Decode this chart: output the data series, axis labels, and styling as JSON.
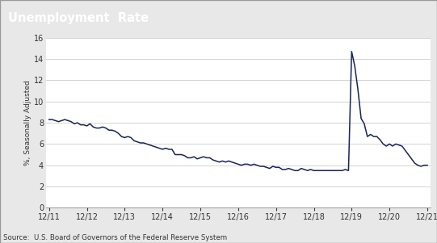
{
  "title": "Unemployment  Rate",
  "ylabel": "%, Seasonally Adjusted",
  "source": "Source:  U.S. Board of Governors of the Federal Reserve System",
  "line_color": "#1a2358",
  "background_color": "#e8e8e8",
  "plot_bg_color": "#ffffff",
  "title_bg_color": "#666666",
  "title_text_color": "#ffffff",
  "border_color": "#aaaaaa",
  "ylim": [
    0,
    16
  ],
  "yticks": [
    0,
    2,
    4,
    6,
    8,
    10,
    12,
    14,
    16
  ],
  "x_labels": [
    "12/11",
    "12/12",
    "12/13",
    "12/14",
    "12/15",
    "12/16",
    "12/17",
    "12/18",
    "12/19",
    "12/20",
    "12/21"
  ],
  "data": [
    8.3,
    8.3,
    8.2,
    8.1,
    8.2,
    8.3,
    8.2,
    8.1,
    7.9,
    8.0,
    7.8,
    7.8,
    7.7,
    7.9,
    7.6,
    7.5,
    7.5,
    7.6,
    7.5,
    7.3,
    7.3,
    7.2,
    7.0,
    6.7,
    6.6,
    6.7,
    6.6,
    6.3,
    6.2,
    6.1,
    6.1,
    6.0,
    5.9,
    5.8,
    5.7,
    5.6,
    5.5,
    5.6,
    5.5,
    5.5,
    5.0,
    5.0,
    5.0,
    4.9,
    4.7,
    4.7,
    4.8,
    4.6,
    4.7,
    4.8,
    4.7,
    4.7,
    4.5,
    4.4,
    4.3,
    4.4,
    4.3,
    4.4,
    4.3,
    4.2,
    4.1,
    4.0,
    4.1,
    4.1,
    4.0,
    4.1,
    4.0,
    3.9,
    3.9,
    3.8,
    3.7,
    3.9,
    3.8,
    3.8,
    3.6,
    3.6,
    3.7,
    3.6,
    3.5,
    3.5,
    3.7,
    3.6,
    3.5,
    3.6,
    3.5,
    3.5,
    3.5,
    3.5,
    3.5,
    3.5,
    3.5,
    3.5,
    3.5,
    3.5,
    3.6,
    3.5,
    14.7,
    13.3,
    11.1,
    8.4,
    7.9,
    6.7,
    6.9,
    6.7,
    6.7,
    6.4,
    6.0,
    5.8,
    6.0,
    5.8,
    6.0,
    5.9,
    5.8,
    5.4,
    5.0,
    4.6,
    4.2,
    4.0,
    3.9,
    4.0,
    4.0
  ]
}
